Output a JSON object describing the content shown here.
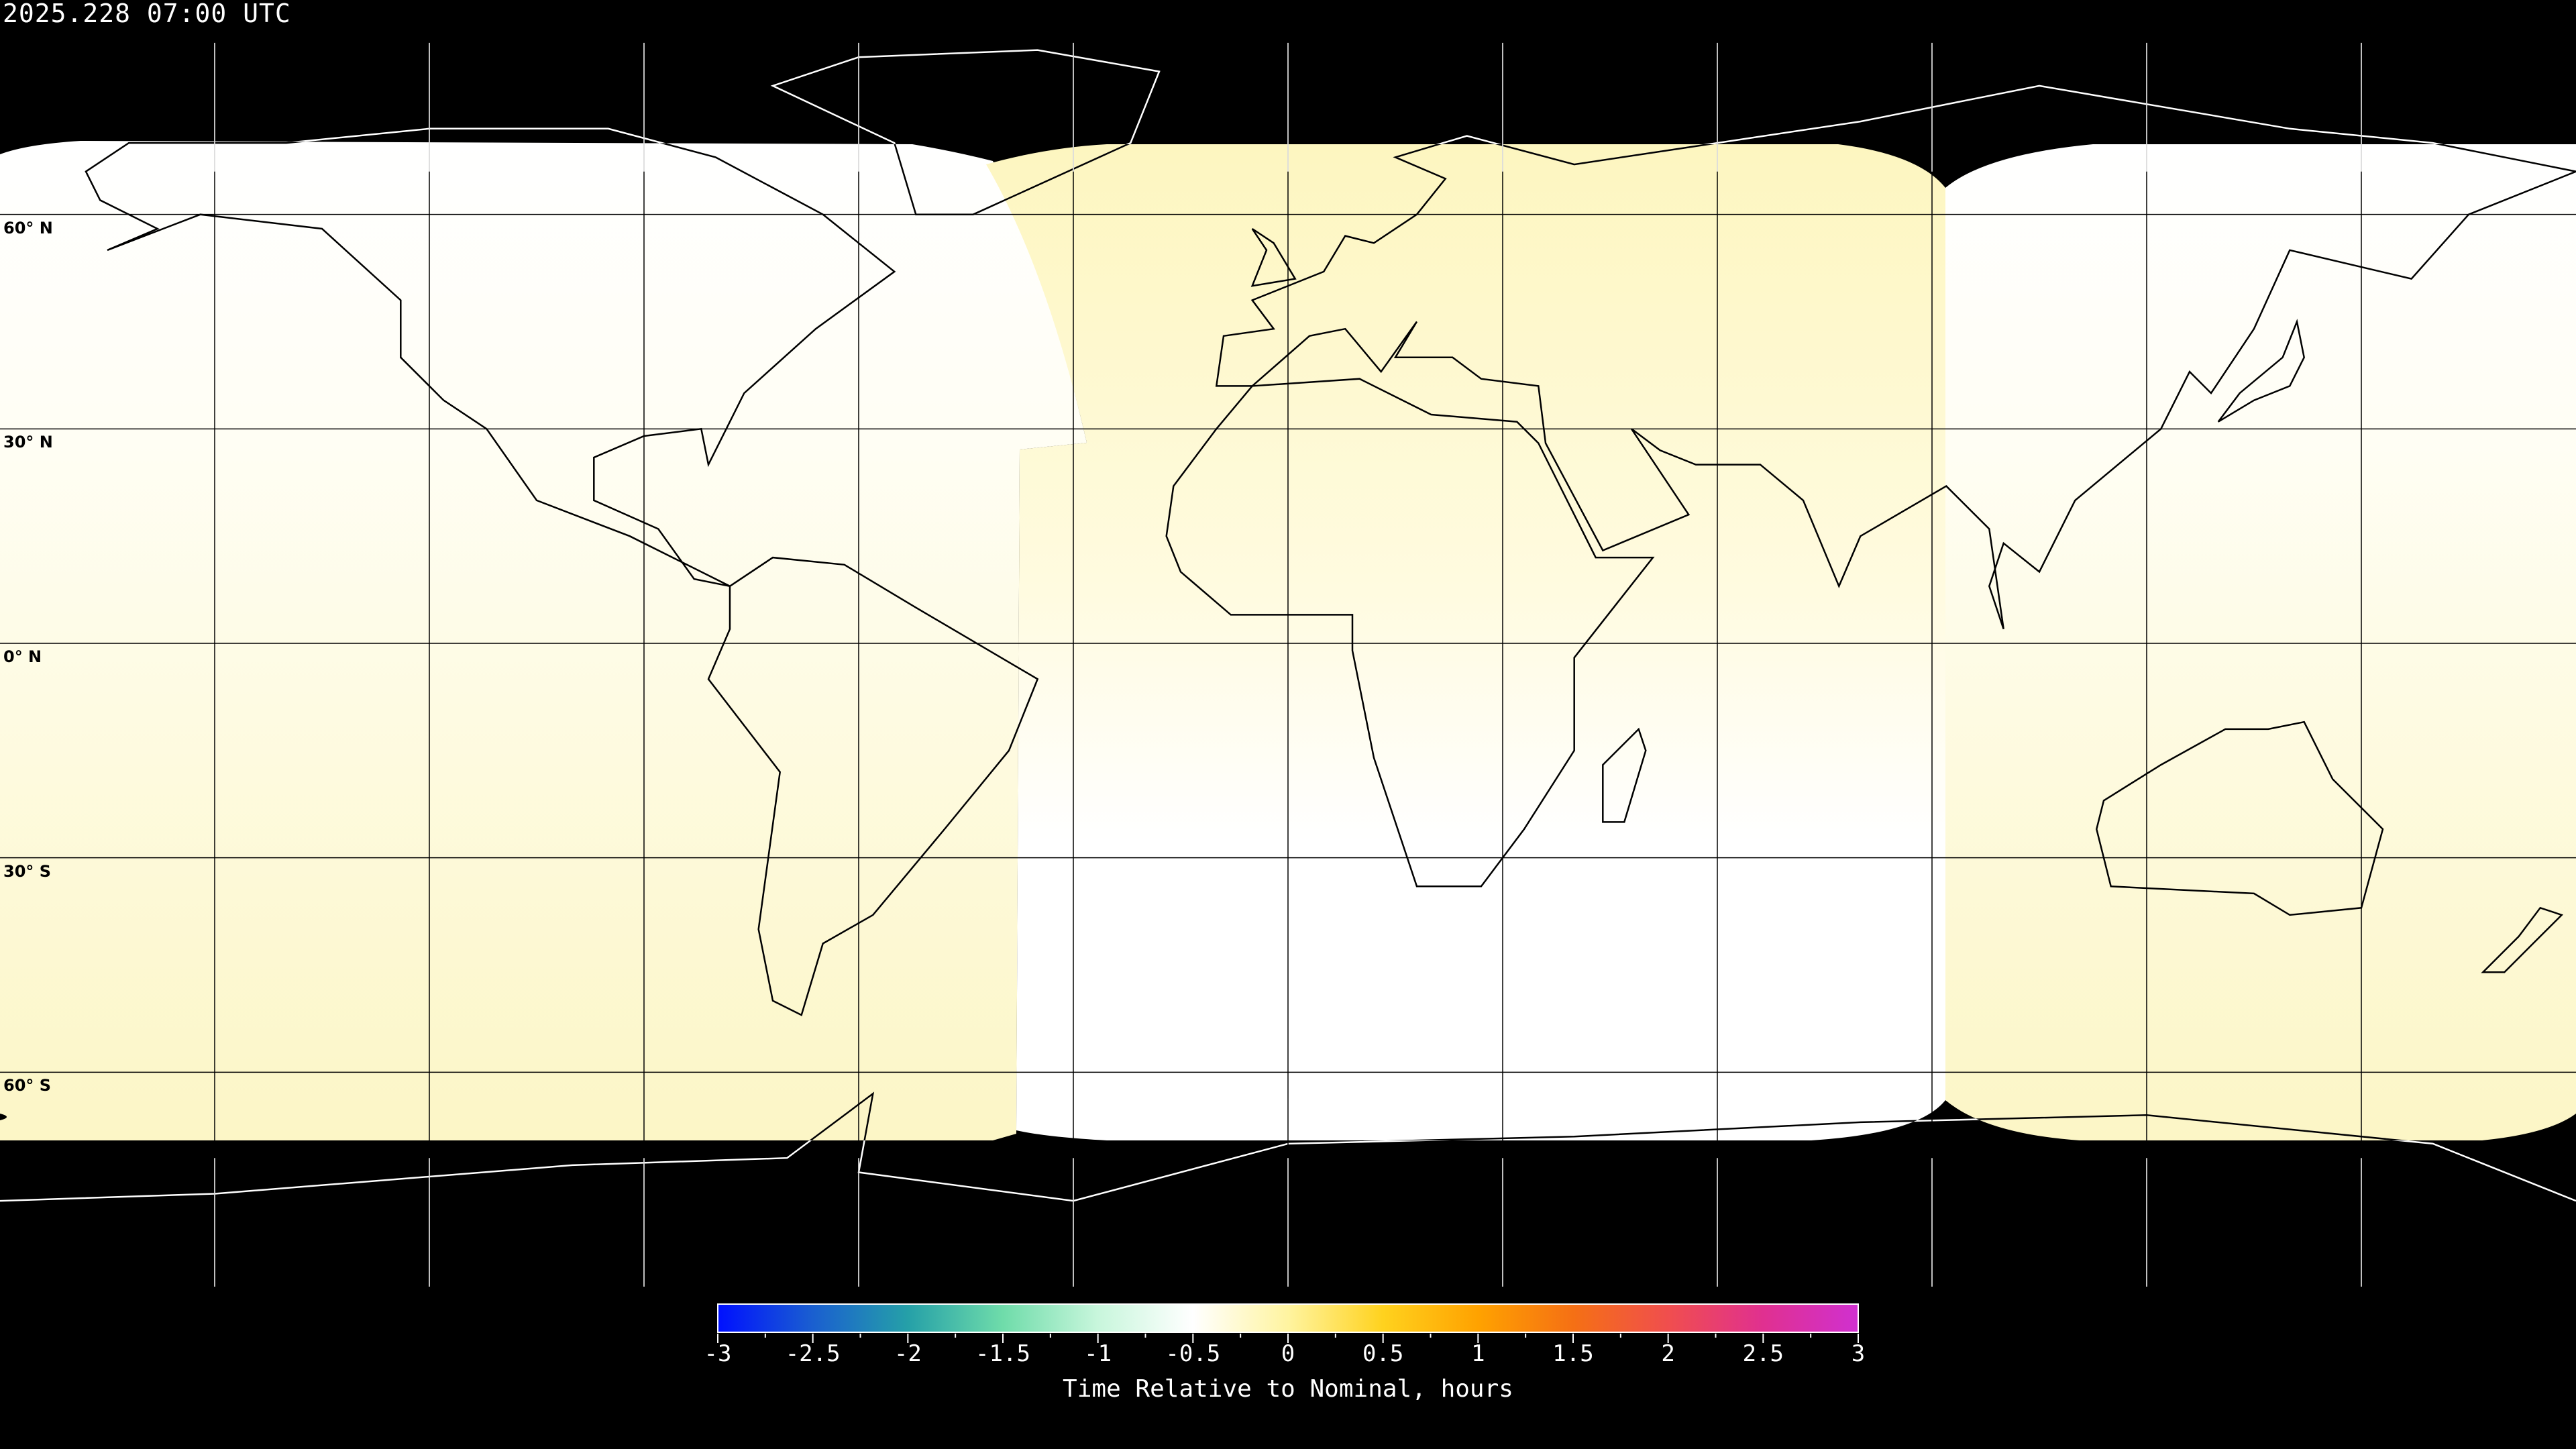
{
  "title": "2025.228 07:00 UTC",
  "grid": {
    "lon_step_deg": 30,
    "lat_step_deg": 30,
    "color": "#000000"
  },
  "latitude_labels": [
    {
      "lat": 60,
      "text": "60° N"
    },
    {
      "lat": 30,
      "text": "30° N"
    },
    {
      "lat": 0,
      "text": "0° N"
    },
    {
      "lat": -30,
      "text": "30° S"
    },
    {
      "lat": -60,
      "text": "60° S"
    }
  ],
  "colorbar": {
    "label": "Time Relative to Nominal, hours",
    "range": [
      -3,
      3
    ],
    "ticks": [
      "-3",
      "-2.5",
      "-2",
      "-1.5",
      "-1",
      "-0.5",
      "0",
      "0.5",
      "1",
      "1.5",
      "2",
      "2.5",
      "3"
    ],
    "colormap": [
      "#0010ff",
      "#1a5fd0",
      "#25a0a8",
      "#6fdcaa",
      "#c8f6dc",
      "#ffffff",
      "#fff4a0",
      "#ffd21e",
      "#ffa200",
      "#f57014",
      "#f04e4e",
      "#e03090",
      "#d030d0"
    ]
  },
  "coverage": {
    "no_data_color": "#000000",
    "near_zero_color": "#ffffff",
    "slight_positive_color": "#fdf8c8"
  }
}
